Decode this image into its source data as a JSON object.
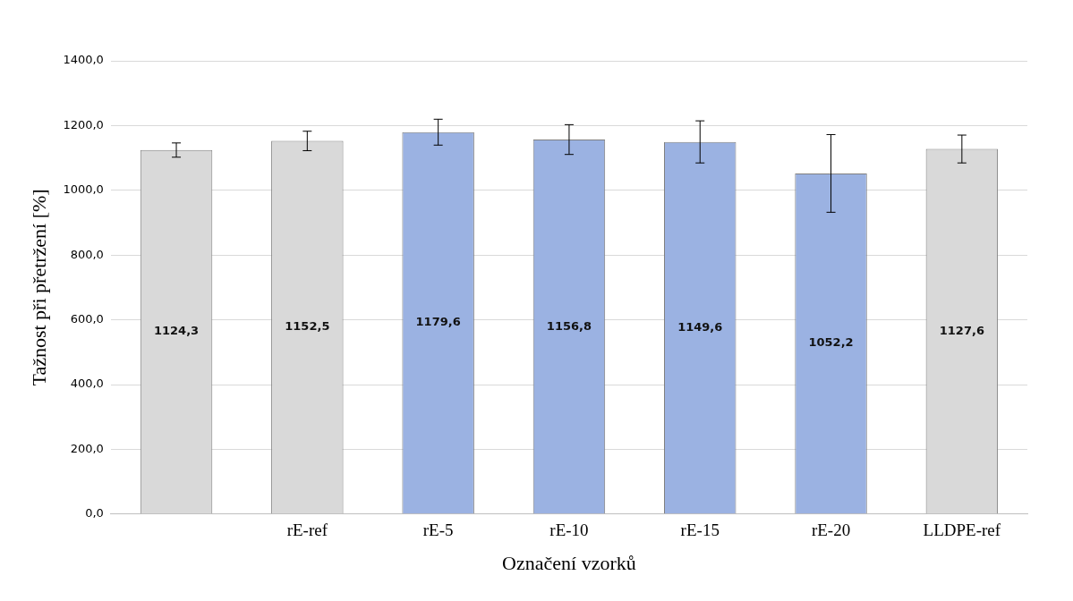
{
  "chart_data": {
    "type": "bar",
    "xlabel": "Označení vzorků",
    "ylabel": "Tažnost při přetržení [%]",
    "categories": [
      null,
      "rE-ref",
      "rE-5",
      "rE-10",
      "rE-15",
      "rE-20",
      "LLDPE-ref"
    ],
    "values": [
      1124.3,
      1152.5,
      1179.6,
      1156.8,
      1149.6,
      1052.2,
      1127.6
    ],
    "colors": [
      "#d9d9d9",
      "#d9d9d9",
      "#9bb2e2",
      "#9bb2e2",
      "#9bb2e2",
      "#9bb2e2",
      "#d9d9d9"
    ],
    "errors": [
      22,
      30,
      40,
      46,
      65,
      120,
      43
    ],
    "value_labels": [
      "1124,3",
      "1152,5",
      "1179,6",
      "1156,8",
      "1149,6",
      "1052,2",
      "1127,6"
    ],
    "ylim": [
      0,
      1400
    ],
    "yticks": [
      {
        "value": 0,
        "label": "0,0"
      },
      {
        "value": 200,
        "label": "200,0"
      },
      {
        "value": 400,
        "label": "400,0"
      },
      {
        "value": 600,
        "label": "600,0"
      },
      {
        "value": 800,
        "label": "800,0"
      },
      {
        "value": 1000,
        "label": "1000,0"
      },
      {
        "value": 1200,
        "label": "1200,0"
      },
      {
        "value": 1400,
        "label": "1400,0"
      }
    ],
    "grid": "y"
  }
}
